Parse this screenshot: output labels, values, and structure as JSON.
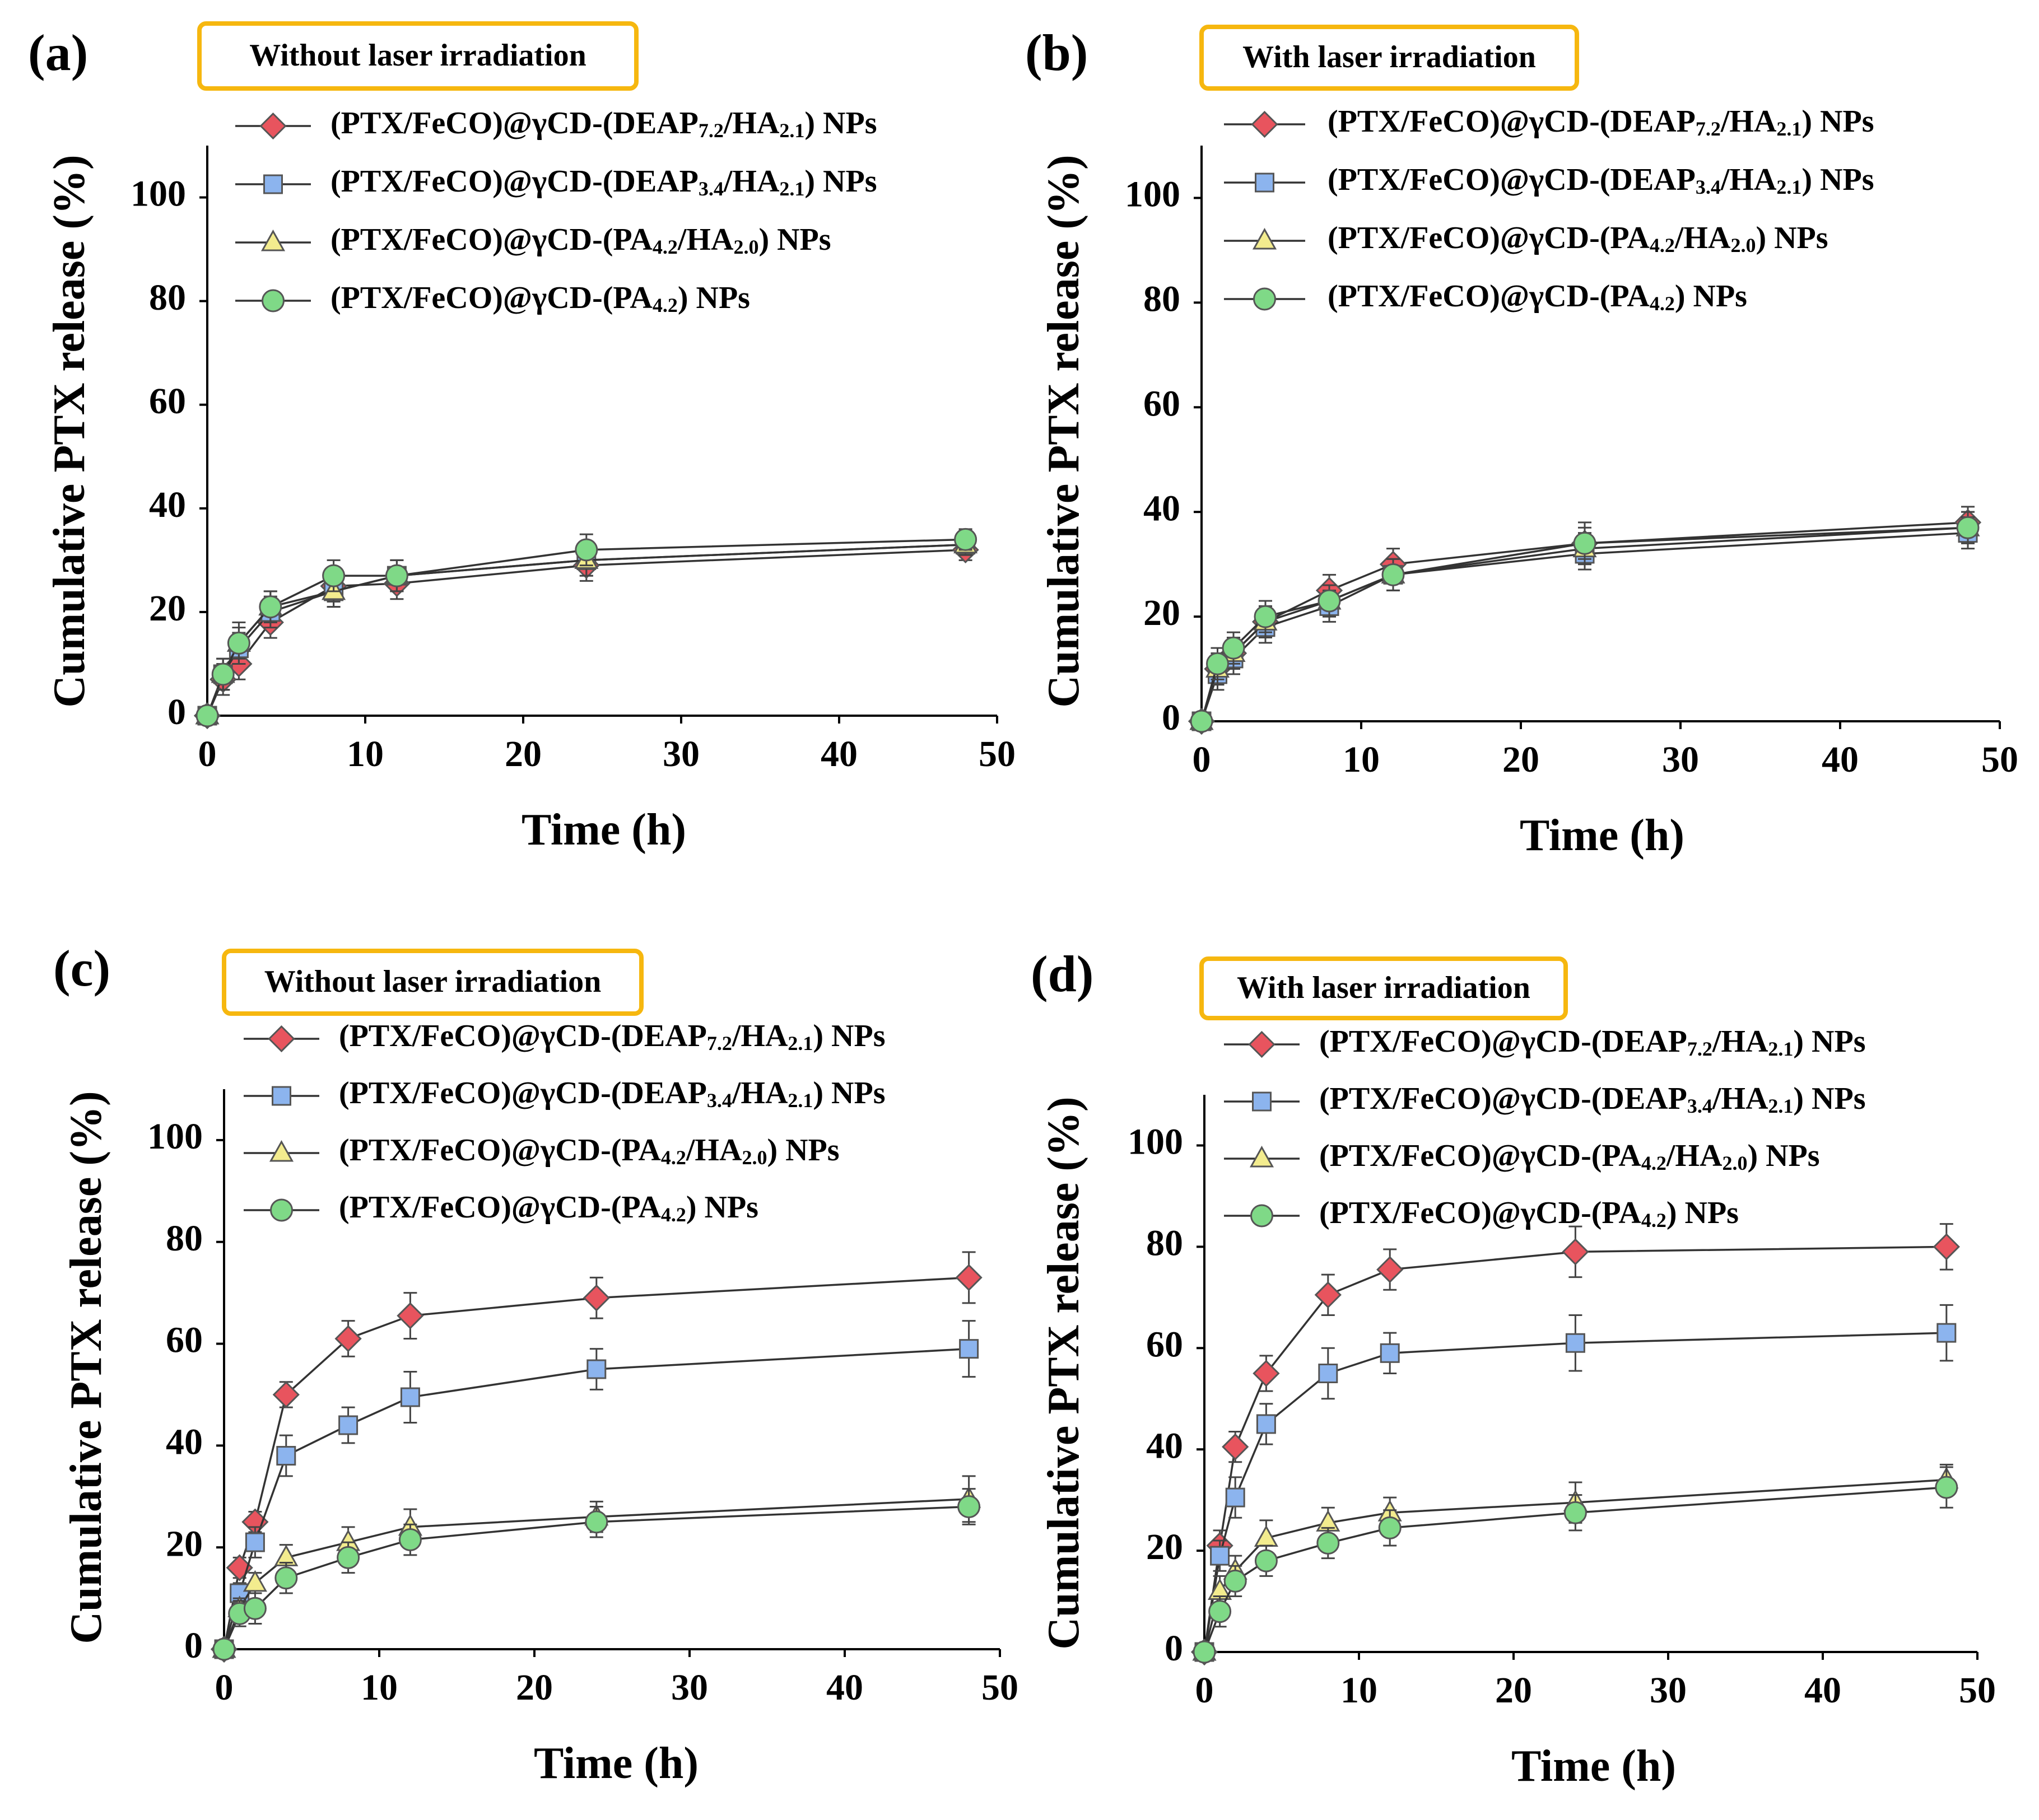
{
  "legend_entries": [
    {
      "text": "(PTX/FeCO)@γCD-(DEAP",
      "sub1": "7.2",
      "mid": "/HA",
      "sub2": "2.1",
      "tail": ") NPs",
      "marker": "diamond",
      "color": "#E8545E"
    },
    {
      "text": "(PTX/FeCO)@γCD-(DEAP",
      "sub1": "3.4",
      "mid": "/HA",
      "sub2": "2.1",
      "tail": ") NPs",
      "marker": "square",
      "color": "#8CB4EE"
    },
    {
      "text": "(PTX/FeCO)@γCD-(PA",
      "sub1": "4.2",
      "mid": "/HA",
      "sub2": "2.0",
      "tail": ") NPs",
      "marker": "triangle",
      "color": "#F3EC8E"
    },
    {
      "text": "(PTX/FeCO)@γCD-(PA",
      "sub1": "4.2",
      "mid": "",
      "sub2": "",
      "tail": ") NPs",
      "marker": "circle",
      "color": "#7FD987"
    }
  ],
  "chart_data": [
    {
      "panel_label": "(a)",
      "condition": "Without laser irradiation",
      "type": "line",
      "xlabel": "Time (h)",
      "ylabel": "Cumulative PTX release (%)",
      "xlim": [
        0,
        50
      ],
      "ylim": [
        0,
        110
      ],
      "xticks": [
        0,
        10,
        20,
        30,
        40,
        50
      ],
      "yticks": [
        0,
        20,
        40,
        60,
        80,
        100
      ],
      "x": [
        0,
        1,
        2,
        4,
        8,
        12,
        24,
        48
      ],
      "series": [
        {
          "name": "(PTX/FeCO)@γCD-(DEAP7.2/HA2.1) NPs",
          "values": [
            0,
            7,
            10,
            18,
            25,
            25.5,
            29,
            32
          ],
          "errors": [
            0,
            3,
            3,
            3,
            3,
            3,
            3,
            2
          ]
        },
        {
          "name": "(PTX/FeCO)@γCD-(DEAP3.4/HA2.1) NPs",
          "values": [
            0,
            8,
            13,
            20,
            24,
            27,
            30,
            33
          ],
          "errors": [
            0,
            3,
            3,
            3,
            3,
            3,
            3,
            2
          ]
        },
        {
          "name": "(PTX/FeCO)@γCD-(PA4.2/HA2.0) NPs",
          "values": [
            0,
            8,
            14,
            21,
            24,
            27,
            30,
            33
          ],
          "errors": [
            0,
            3,
            3,
            3,
            3,
            3,
            3,
            2
          ]
        },
        {
          "name": "(PTX/FeCO)@γCD-(PA4.2) NPs",
          "values": [
            0,
            8,
            14,
            21,
            27,
            27,
            32,
            34
          ],
          "errors": [
            0,
            3,
            4,
            3,
            3,
            3,
            3,
            2
          ]
        }
      ]
    },
    {
      "panel_label": "(b)",
      "condition": "With laser irradiation",
      "type": "line",
      "xlabel": "Time (h)",
      "ylabel": "Cumulative PTX release (%)",
      "xlim": [
        0,
        50
      ],
      "ylim": [
        0,
        110
      ],
      "xticks": [
        0,
        10,
        20,
        30,
        40,
        50
      ],
      "yticks": [
        0,
        20,
        40,
        60,
        80,
        100
      ],
      "x": [
        0,
        1,
        2,
        4,
        8,
        12,
        24,
        48
      ],
      "series": [
        {
          "name": "(PTX/FeCO)@γCD-(DEAP7.2/HA2.1) NPs",
          "values": [
            0,
            10,
            13,
            19,
            25,
            30,
            34,
            38
          ],
          "errors": [
            0,
            3,
            3,
            3,
            3,
            3,
            4,
            3
          ]
        },
        {
          "name": "(PTX/FeCO)@γCD-(DEAP3.4/HA2.1) NPs",
          "values": [
            0,
            9,
            12,
            18,
            22,
            28,
            32,
            36
          ],
          "errors": [
            0,
            3,
            3,
            3,
            3,
            3,
            3,
            3
          ]
        },
        {
          "name": "(PTX/FeCO)@γCD-(PA4.2/HA2.0) NPs",
          "values": [
            0,
            10,
            13,
            19,
            23,
            28,
            33,
            37
          ],
          "errors": [
            0,
            3,
            3,
            3,
            3,
            3,
            3,
            3
          ]
        },
        {
          "name": "(PTX/FeCO)@γCD-(PA4.2) NPs",
          "values": [
            0,
            11,
            14,
            20,
            23,
            28,
            34,
            37
          ],
          "errors": [
            0,
            3,
            3,
            3,
            3,
            3,
            3,
            3
          ]
        }
      ]
    },
    {
      "panel_label": "(c)",
      "condition": "Without laser irradiation",
      "type": "line",
      "xlabel": "Time (h)",
      "ylabel": "Cumulative PTX release (%)",
      "xlim": [
        0,
        50
      ],
      "ylim": [
        0,
        110
      ],
      "xticks": [
        0,
        10,
        20,
        30,
        40,
        50
      ],
      "yticks": [
        0,
        20,
        40,
        60,
        80,
        100
      ],
      "x": [
        0,
        1,
        2,
        4,
        8,
        12,
        24,
        48
      ],
      "series": [
        {
          "name": "(PTX/FeCO)@γCD-(DEAP7.2/HA2.1) NPs",
          "values": [
            0,
            16,
            25,
            50,
            61,
            65.5,
            69,
            73
          ],
          "errors": [
            0,
            2,
            2,
            2.5,
            3.5,
            4.5,
            4,
            5
          ]
        },
        {
          "name": "(PTX/FeCO)@γCD-(DEAP3.4/HA2.1) NPs",
          "values": [
            0,
            11,
            21,
            38,
            44,
            49.5,
            55,
            59
          ],
          "errors": [
            0,
            2,
            3,
            4,
            3.5,
            5,
            4,
            5.5
          ]
        },
        {
          "name": "(PTX/FeCO)@γCD-(PA4.2/HA2.0) NPs",
          "values": [
            0,
            8,
            13,
            18,
            21,
            24,
            26,
            29.5
          ],
          "errors": [
            0,
            2,
            2,
            2.5,
            3,
            3.5,
            3,
            4.5
          ]
        },
        {
          "name": "(PTX/FeCO)@γCD-(PA4.2) NPs",
          "values": [
            0,
            7,
            8,
            14,
            18,
            21.5,
            25,
            28
          ],
          "errors": [
            0,
            2.5,
            3,
            3,
            3,
            3,
            3,
            3.5
          ]
        }
      ]
    },
    {
      "panel_label": "(d)",
      "condition": "With laser irradiation",
      "type": "line",
      "xlabel": "Time (h)",
      "ylabel": "Cumulative PTX release (%)",
      "xlim": [
        0,
        50
      ],
      "ylim": [
        0,
        110
      ],
      "xticks": [
        0,
        10,
        20,
        30,
        40,
        50
      ],
      "yticks": [
        0,
        20,
        40,
        60,
        80,
        100
      ],
      "x": [
        0,
        1,
        2,
        4,
        8,
        12,
        24,
        48
      ],
      "series": [
        {
          "name": "(PTX/FeCO)@γCD-(DEAP7.2/HA2.1) NPs",
          "values": [
            0,
            21,
            40.5,
            55,
            70.5,
            75.5,
            79,
            80
          ],
          "errors": [
            0,
            3,
            3,
            3.5,
            4,
            4,
            5,
            4.5
          ]
        },
        {
          "name": "(PTX/FeCO)@γCD-(DEAP3.4/HA2.1) NPs",
          "values": [
            0,
            19,
            30.5,
            45,
            55,
            59,
            61,
            63
          ],
          "errors": [
            0,
            3,
            4,
            4,
            5,
            4,
            5.5,
            5.5
          ]
        },
        {
          "name": "(PTX/FeCO)@γCD-(PA4.2/HA2.0) NPs",
          "values": [
            0,
            12,
            16,
            22.5,
            25.5,
            27.5,
            29.5,
            34
          ],
          "errors": [
            0,
            3,
            3,
            3.5,
            3,
            3,
            4,
            3
          ]
        },
        {
          "name": "(PTX/FeCO)@γCD-(PA4.2) NPs",
          "values": [
            0,
            8,
            14,
            18,
            21.5,
            24.5,
            27.5,
            32.5
          ],
          "errors": [
            0,
            3,
            3,
            3,
            3,
            3.5,
            3.5,
            4
          ]
        }
      ]
    }
  ]
}
